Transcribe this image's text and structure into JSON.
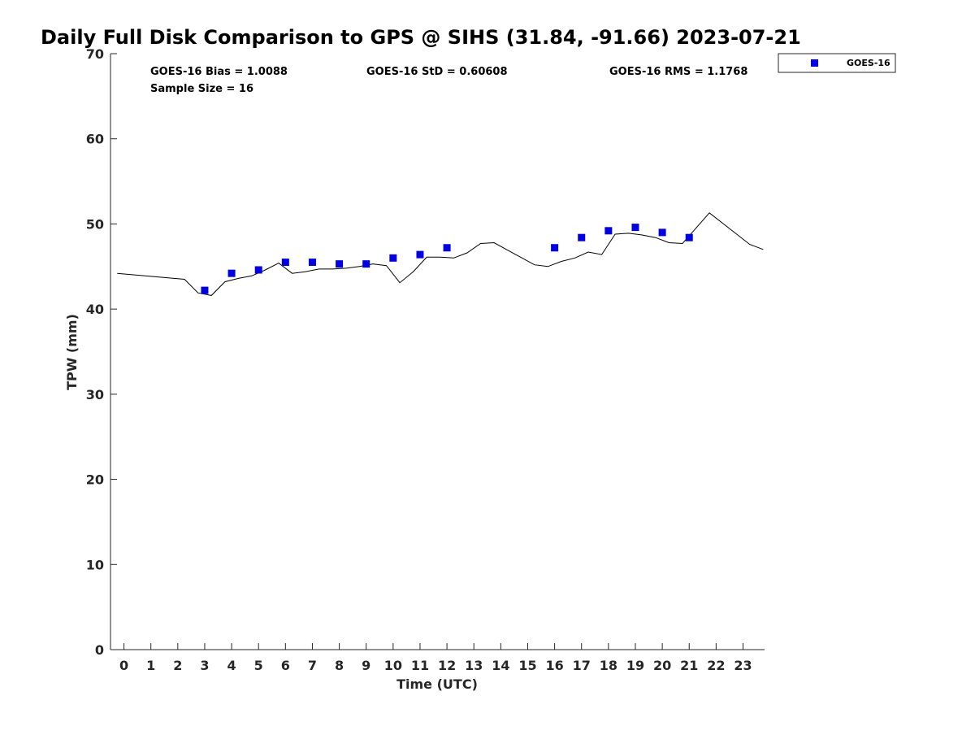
{
  "colors": {
    "marker": "#0000e0",
    "gps_line": "#000000",
    "axis": "#262626"
  },
  "chart_data": {
    "type": "scatter",
    "title": "Daily Full Disk Comparison to GPS @ SIHS (31.84, -91.66) 2023-07-21",
    "xlabel": "Time (UTC)",
    "ylabel": "TPW (mm)",
    "xlim": [
      -0.5,
      23.8
    ],
    "ylim": [
      0,
      70
    ],
    "x_ticks": [
      0,
      1,
      2,
      3,
      4,
      5,
      6,
      7,
      8,
      9,
      10,
      11,
      12,
      13,
      14,
      15,
      16,
      17,
      18,
      19,
      20,
      21,
      22,
      23
    ],
    "y_ticks": [
      0,
      10,
      20,
      30,
      40,
      50,
      60,
      70
    ],
    "grid": false,
    "legend_position": "top-right",
    "stats": {
      "bias": "GOES-16 Bias = 1.0088",
      "std": "GOES-16 StD = 0.60608",
      "rms": "GOES-16 RMS = 1.1768",
      "sample": "Sample Size = 16"
    },
    "series": [
      {
        "name": "GOES-16",
        "kind": "markers",
        "x": [
          3,
          4,
          5,
          6,
          7,
          8,
          9,
          10,
          11,
          12,
          16,
          17,
          18,
          19,
          20,
          21
        ],
        "y": [
          42.2,
          44.2,
          44.6,
          45.5,
          45.5,
          45.3,
          45.3,
          46.0,
          46.4,
          47.2,
          47.2,
          48.4,
          49.2,
          49.6,
          49.0,
          48.4
        ]
      },
      {
        "kind": "line",
        "x": [
          -0.25,
          2.25,
          2.75,
          3.25,
          3.75,
          4.25,
          4.75,
          5.25,
          5.75,
          6.25,
          6.75,
          7.25,
          7.75,
          8.25,
          8.75,
          9.25,
          9.75,
          10.25,
          10.75,
          11.25,
          11.75,
          12.25,
          12.75,
          13.25,
          13.75,
          15.25,
          15.75,
          16.25,
          16.75,
          17.25,
          17.75,
          18.25,
          18.75,
          19.25,
          19.75,
          20.25,
          20.75,
          21.25,
          21.75,
          23.25,
          23.75
        ],
        "y": [
          44.2,
          43.5,
          41.9,
          41.6,
          43.2,
          43.6,
          43.9,
          44.6,
          45.4,
          44.2,
          44.4,
          44.7,
          44.7,
          44.8,
          45.0,
          45.3,
          45.1,
          43.1,
          44.4,
          46.1,
          46.1,
          46.0,
          46.6,
          47.7,
          47.8,
          45.2,
          45.0,
          45.6,
          46.0,
          46.7,
          46.4,
          48.8,
          48.9,
          48.7,
          48.4,
          47.8,
          47.7,
          49.5,
          51.3,
          47.6,
          47.0
        ]
      }
    ]
  }
}
